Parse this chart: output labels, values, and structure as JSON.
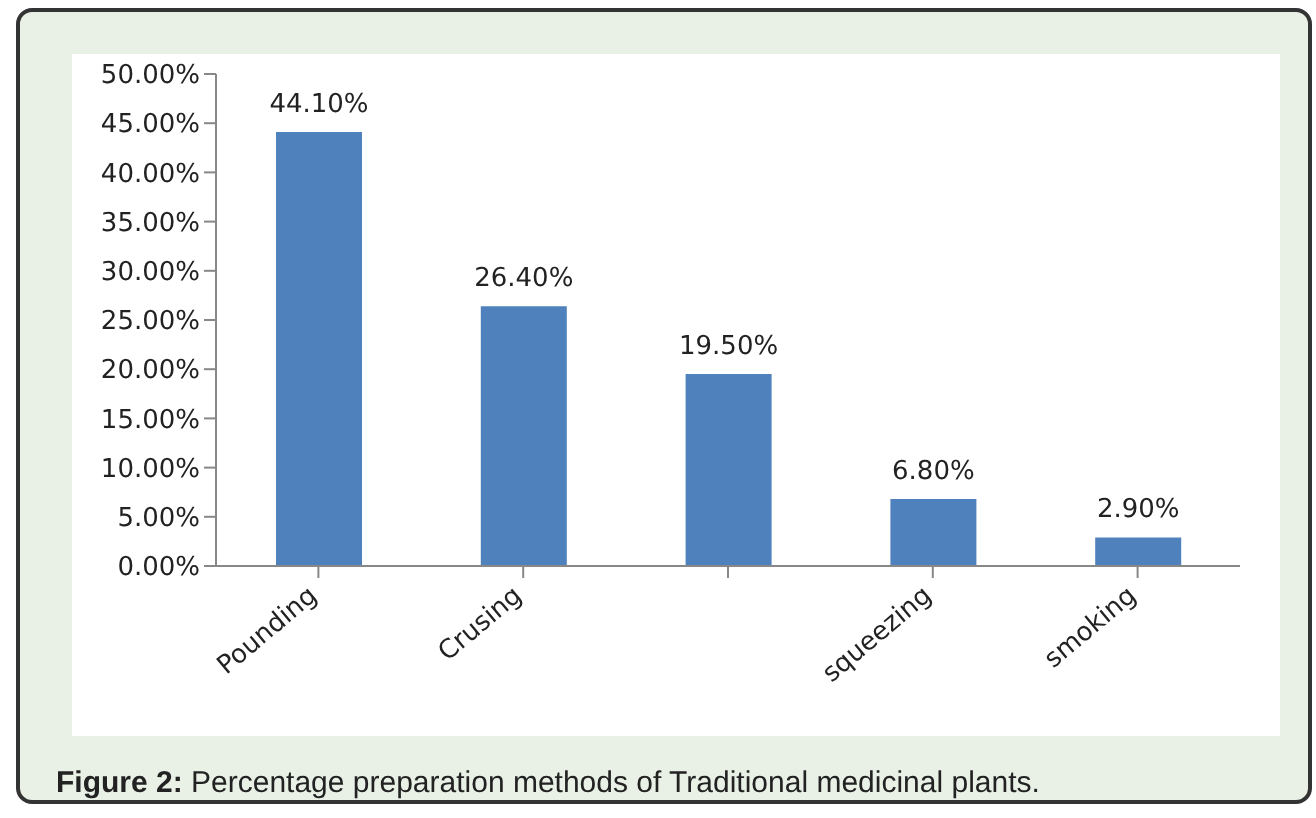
{
  "chart_data": {
    "type": "bar",
    "categories": [
      "Pounding",
      "Crusing",
      null,
      "squeezing",
      "smoking"
    ],
    "values": [
      44.1,
      26.4,
      19.5,
      6.8,
      2.9
    ],
    "color": "#4f81bd",
    "value_labels": [
      "44.10%",
      "26.40%",
      "19.50%",
      "6.80%",
      "2.90%"
    ],
    "ylim": [
      0,
      50
    ],
    "yticks": [
      {
        "value": 0,
        "label": "0.00%"
      },
      {
        "value": 5,
        "label": "5.00%"
      },
      {
        "value": 10,
        "label": "10.00%"
      },
      {
        "value": 15,
        "label": "15.00%"
      },
      {
        "value": 20,
        "label": "20.00%"
      },
      {
        "value": 25,
        "label": "25.00%"
      },
      {
        "value": 30,
        "label": "30.00%"
      },
      {
        "value": 35,
        "label": "35.00%"
      },
      {
        "value": 40,
        "label": "40.00%"
      },
      {
        "value": 45,
        "label": "45.00%"
      },
      {
        "value": 50,
        "label": "50.00%"
      }
    ],
    "annotations": [
      "Figure 2: Percentage preparation methods of Traditional medicinal plants."
    ],
    "grid": false,
    "legend": false
  }
}
